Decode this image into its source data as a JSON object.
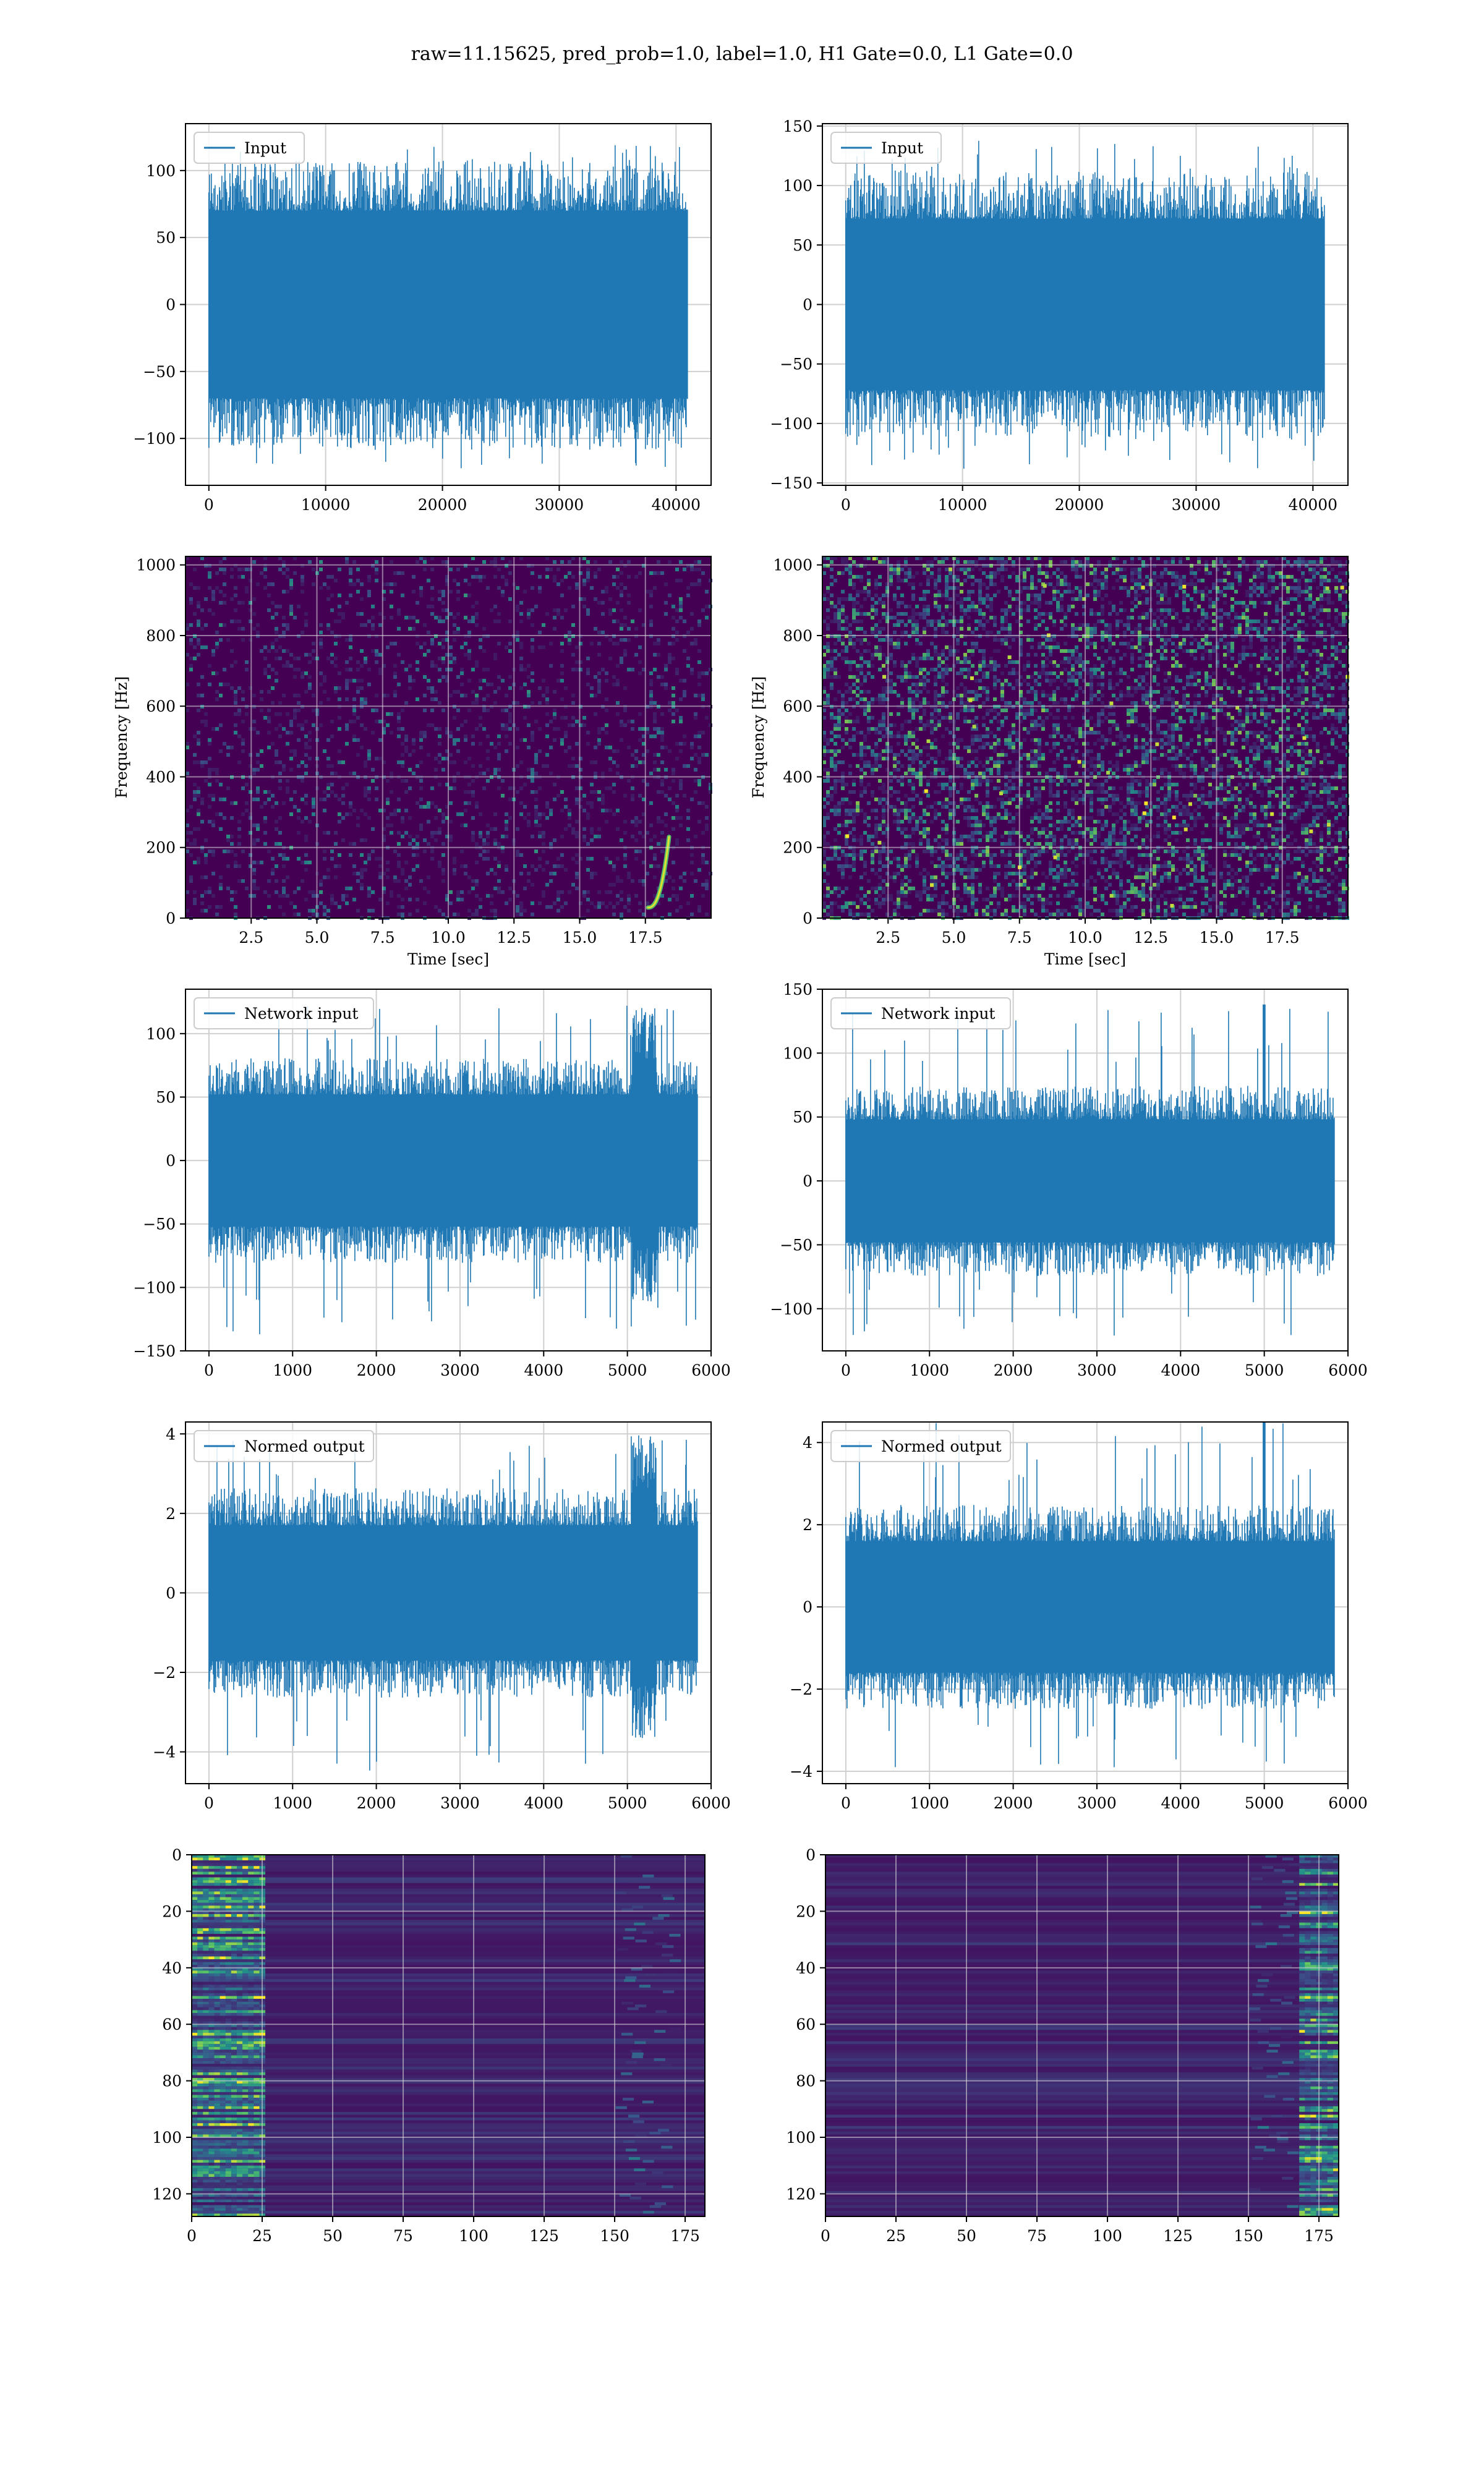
{
  "figure": {
    "title": "raw=11.15625, pred_prob=1.0, label=1.0, H1 Gate=0.0, L1 Gate=0.0"
  },
  "colors": {
    "line": "#1f77b4",
    "grid": "#d0d0d0",
    "heat_low": "#440154",
    "heat_mid": "#21908d",
    "heat_high": "#fde725"
  },
  "chart_data": [
    {
      "id": "input-left",
      "type": "line",
      "legend": "Input",
      "legend_loc": "upper-left",
      "xlim": [
        -2000,
        43000
      ],
      "ylim": [
        -135,
        135
      ],
      "x_ticks": [
        0,
        10000,
        20000,
        30000,
        40000
      ],
      "y_ticks": [
        -100,
        -50,
        0,
        50,
        100
      ],
      "x_span": [
        0,
        40960
      ],
      "band": [
        -70,
        70
      ],
      "peak": [
        -124,
        120
      ],
      "series": [
        {
          "name": "Input",
          "samples": 40960
        }
      ]
    },
    {
      "id": "input-right",
      "type": "line",
      "legend": "Input",
      "legend_loc": "upper-left",
      "xlim": [
        -2000,
        43000
      ],
      "ylim": [
        -152,
        152
      ],
      "x_ticks": [
        0,
        10000,
        20000,
        30000,
        40000
      ],
      "y_ticks": [
        -150,
        -100,
        -50,
        0,
        50,
        100,
        150
      ],
      "x_span": [
        0,
        40960
      ],
      "band": [
        -72,
        72
      ],
      "peak": [
        -140,
        138
      ],
      "series": [
        {
          "name": "Input",
          "samples": 40960
        }
      ]
    },
    {
      "id": "spectrogram-left",
      "type": "heatmap",
      "xlabel": "Time [sec]",
      "ylabel": "Frequency [Hz]",
      "xlim": [
        0,
        20
      ],
      "ylim": [
        0,
        1024
      ],
      "x_ticks": [
        2.5,
        5.0,
        7.5,
        10.0,
        12.5,
        15.0,
        17.5
      ],
      "y_ticks": [
        0,
        200,
        400,
        600,
        800,
        1000
      ],
      "density": "low",
      "chirp": {
        "t_start": 17.6,
        "t_end": 18.4,
        "f_start": 30,
        "f_end": 230
      }
    },
    {
      "id": "spectrogram-right",
      "type": "heatmap",
      "xlabel": "Time [sec]",
      "ylabel": "Frequency [Hz]",
      "xlim": [
        0,
        20
      ],
      "ylim": [
        0,
        1024
      ],
      "x_ticks": [
        2.5,
        5.0,
        7.5,
        10.0,
        12.5,
        15.0,
        17.5
      ],
      "y_ticks": [
        0,
        200,
        400,
        600,
        800,
        1000
      ],
      "density": "high"
    },
    {
      "id": "network-input-left",
      "type": "line",
      "legend": "Network input",
      "legend_loc": "upper-left",
      "xlim": [
        -280,
        6000
      ],
      "ylim": [
        -150,
        135
      ],
      "x_ticks": [
        0,
        1000,
        2000,
        3000,
        4000,
        5000,
        6000
      ],
      "y_ticks": [
        -150,
        -100,
        -50,
        0,
        50,
        100
      ],
      "x_span": [
        0,
        5836
      ],
      "band": [
        -52,
        52
      ],
      "peak": [
        -138,
        122
      ],
      "burst_at": 5200,
      "series": [
        {
          "name": "Network input",
          "samples": 5836
        }
      ]
    },
    {
      "id": "network-input-right",
      "type": "line",
      "legend": "Network input",
      "legend_loc": "upper-left",
      "xlim": [
        -280,
        6000
      ],
      "ylim": [
        -133,
        150
      ],
      "x_ticks": [
        0,
        1000,
        2000,
        3000,
        4000,
        5000,
        6000
      ],
      "y_ticks": [
        -100,
        -50,
        0,
        50,
        100,
        150
      ],
      "x_span": [
        0,
        5836
      ],
      "band": [
        -48,
        48
      ],
      "peak": [
        -121,
        138
      ],
      "spike_at": 5000,
      "series": [
        {
          "name": "Network input",
          "samples": 5836
        }
      ]
    },
    {
      "id": "normed-output-left",
      "type": "line",
      "legend": "Normed output",
      "legend_loc": "upper-left",
      "xlim": [
        -280,
        6000
      ],
      "ylim": [
        -4.8,
        4.3
      ],
      "x_ticks": [
        0,
        1000,
        2000,
        3000,
        4000,
        5000,
        6000
      ],
      "y_ticks": [
        -4,
        -2,
        0,
        2,
        4
      ],
      "x_span": [
        0,
        5836
      ],
      "band": [
        -1.7,
        1.7
      ],
      "peak": [
        -4.5,
        4.0
      ],
      "burst_at": 5200,
      "series": [
        {
          "name": "Normed output",
          "samples": 5836
        }
      ]
    },
    {
      "id": "normed-output-right",
      "type": "line",
      "legend": "Normed output",
      "legend_loc": "upper-left",
      "xlim": [
        -280,
        6000
      ],
      "ylim": [
        -4.3,
        4.5
      ],
      "x_ticks": [
        0,
        1000,
        2000,
        3000,
        4000,
        5000,
        6000
      ],
      "y_ticks": [
        -4,
        -2,
        0,
        2,
        4
      ],
      "x_span": [
        0,
        5836
      ],
      "band": [
        -1.6,
        1.6
      ],
      "peak": [
        -3.9,
        4.5
      ],
      "spike_at": 5000,
      "series": [
        {
          "name": "Normed output",
          "samples": 5836
        }
      ]
    },
    {
      "id": "features-left",
      "type": "heatmap",
      "xlim": [
        0,
        182
      ],
      "ylim": [
        128,
        0
      ],
      "rows": 128,
      "cols": 182,
      "x_ticks": [
        0,
        25,
        50,
        75,
        100,
        125,
        150,
        175
      ],
      "y_ticks": [
        0,
        20,
        40,
        60,
        80,
        100,
        120
      ],
      "hot_cols": [
        0,
        25
      ],
      "edge_cols": [
        150,
        170
      ]
    },
    {
      "id": "features-right",
      "type": "heatmap",
      "xlim": [
        0,
        182
      ],
      "ylim": [
        128,
        0
      ],
      "rows": 128,
      "cols": 182,
      "x_ticks": [
        0,
        25,
        50,
        75,
        100,
        125,
        150,
        175
      ],
      "y_ticks": [
        0,
        20,
        40,
        60,
        80,
        100,
        120
      ],
      "hot_cols": [
        168,
        182
      ],
      "edge_cols": [
        150,
        165
      ]
    }
  ]
}
